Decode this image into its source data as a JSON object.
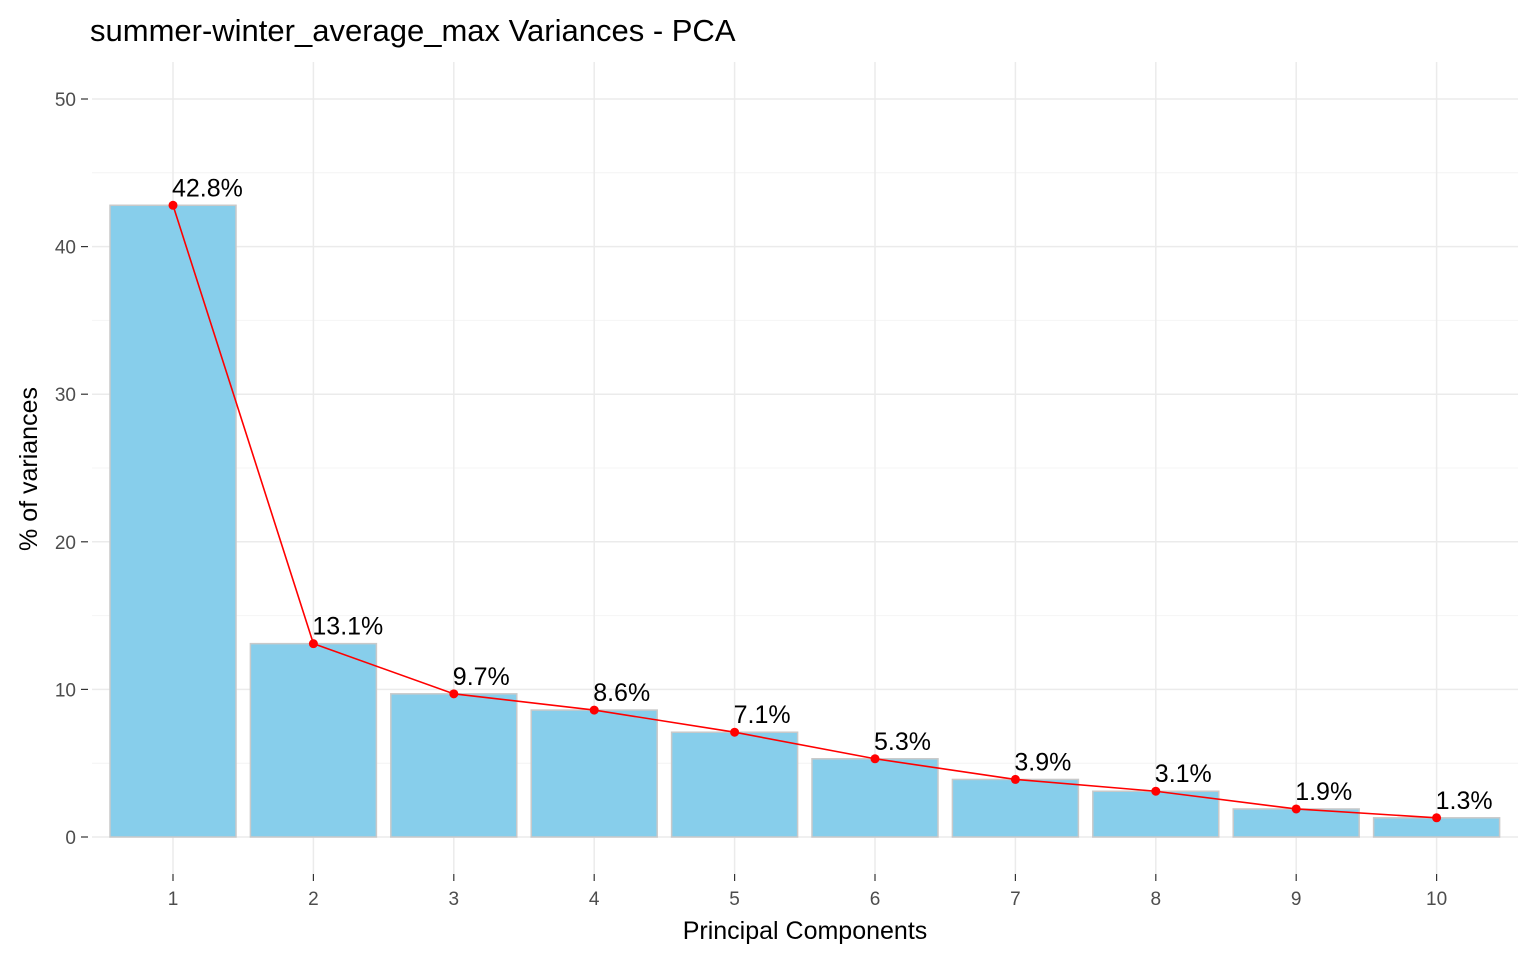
{
  "chart_data": {
    "type": "bar",
    "title": "summer-winter_average_max Variances - PCA",
    "xlabel": "Principal Components",
    "ylabel": "% of variances",
    "categories": [
      "1",
      "2",
      "3",
      "4",
      "5",
      "6",
      "7",
      "8",
      "9",
      "10"
    ],
    "values": [
      42.8,
      13.1,
      9.7,
      8.6,
      7.1,
      5.3,
      3.9,
      3.1,
      1.9,
      1.3
    ],
    "data_labels": [
      "42.8%",
      "13.1%",
      "9.7%",
      "8.6%",
      "7.1%",
      "5.3%",
      "3.9%",
      "3.1%",
      "1.9%",
      "1.3%"
    ],
    "yticks": [
      0,
      10,
      20,
      30,
      40,
      50
    ],
    "ylim": [
      0,
      52.5
    ],
    "grid": true,
    "legend": "none",
    "colors": {
      "bar_fill": "#87CEEB",
      "bar_outline": "#C9C9C9",
      "line": "#FF0000",
      "point": "#FF0000"
    }
  }
}
